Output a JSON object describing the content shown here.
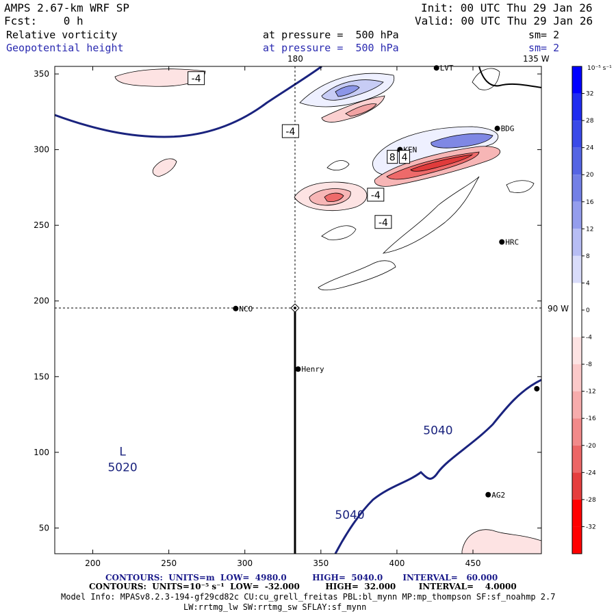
{
  "header": {
    "title": "AMPS 2.67-km WRF SP",
    "init": "Init: 00 UTC Thu 29 Jan 26",
    "fcst": "Fcst:    0 h",
    "valid": "Valid: 00 UTC Thu 29 Jan 26",
    "field1_name": "Relative vorticity",
    "field1_level": "at pressure =  500 hPa",
    "field1_sm": "sm= 2",
    "field2_name": "Geopotential height",
    "field2_level": "at pressure =  500 hPa",
    "field2_sm": "sm= 2"
  },
  "footer": {
    "contours1": "CONTOURS:  UNITS=m  LOW=  4980.0         HIGH=  5040.0       INTERVAL=   60.000",
    "contours2": "CONTOURS:  UNITS=10⁻⁵ s⁻¹  LOW=  -32.000         HIGH=  32.000        INTERVAL=    4.0000",
    "model_info": "Model Info: MPASv8.2.3-194-gf29cd82c CU:cu_grell_freitas PBL:bl_mynn MP:mp_thompson SF:sf_noahmp 2.7",
    "model_info2": "LW:rrtmg_lw SW:rrtmg_sw SFLAY:sf_mynn"
  },
  "colors": {
    "geo_line": "#1a237e",
    "pos_max": "#0000ff",
    "neg_max": "#ff0000"
  },
  "chart_data": {
    "type": "contour_map",
    "xlim": [
      175,
      495
    ],
    "ylim": [
      33,
      355
    ],
    "x_ticks": [
      200,
      250,
      300,
      350,
      400,
      450
    ],
    "y_ticks": [
      50,
      100,
      150,
      200,
      250,
      300,
      350
    ],
    "meridian_labels": [
      {
        "text": "180",
        "position": "top"
      },
      {
        "text": "135 W",
        "position": "top-right"
      },
      {
        "text": "90 W",
        "position": "right"
      }
    ],
    "crosshair": {
      "x": 334,
      "y": 196
    },
    "stations": [
      {
        "name": "NCO",
        "x": 294,
        "y": 195
      },
      {
        "name": "Henry",
        "x": 335,
        "y": 155
      },
      {
        "name": "HRC",
        "x": 469,
        "y": 239
      },
      {
        "name": "BDG",
        "x": 466,
        "y": 314
      },
      {
        "name": "KEN",
        "x": 402,
        "y": 300
      },
      {
        "name": "LVT",
        "x": 426,
        "y": 354
      },
      {
        "name": "AG2",
        "x": 460,
        "y": 72
      },
      {
        "name": "",
        "x": 492,
        "y": 142
      }
    ],
    "geopotential_contours": [
      {
        "label": "5040",
        "label_x": 427,
        "label_y": 112
      },
      {
        "label": "5040",
        "label_x": 369,
        "label_y": 56
      }
    ],
    "low_center": {
      "symbol": "L",
      "value": "5020",
      "x": 216,
      "y": 97
    },
    "vorticity_labels": [
      {
        "text": "-4",
        "x": 268,
        "y": 347
      },
      {
        "text": "-4",
        "x": 330,
        "y": 312
      },
      {
        "text": "-4",
        "x": 386,
        "y": 270
      },
      {
        "text": "-4",
        "x": 391,
        "y": 252
      },
      {
        "text": "8",
        "x": 397,
        "y": 295
      },
      {
        "text": "4",
        "x": 405,
        "y": 295
      }
    ],
    "colorbar": {
      "unit": "10⁻⁵ s⁻¹",
      "ticks": [
        32,
        28,
        24,
        20,
        16,
        12,
        8,
        4,
        0,
        -4,
        -8,
        -12,
        -16,
        -20,
        -24,
        -28,
        -32
      ],
      "range": [
        -36,
        36
      ]
    }
  }
}
